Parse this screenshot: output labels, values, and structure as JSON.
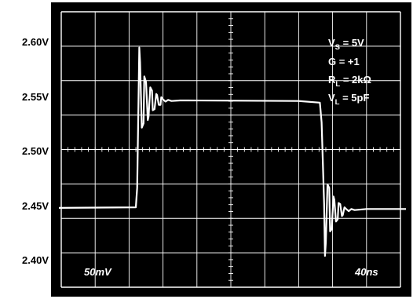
{
  "chart_data": {
    "type": "line",
    "title": "",
    "y_tick_labels": [
      "2.60V",
      "2.55V",
      "2.50V",
      "2.45V",
      "2.40V"
    ],
    "ylim": [
      2.39,
      2.61
    ],
    "xlim": [
      0,
      400
    ],
    "x_divisions": 10,
    "y_divisions": 8,
    "grid": true,
    "background_color": "#000000",
    "trace_color": "#ffffff",
    "grid_color": "#ffffff",
    "conditions": [
      {
        "label": "V",
        "sub": "S",
        "value": " = 5V"
      },
      {
        "label": "G = +1",
        "sub": "",
        "value": ""
      },
      {
        "label": "R",
        "sub": "L",
        "value": " = 2kΩ"
      },
      {
        "label": "V",
        "sub": "L",
        "value": " = 5pF"
      }
    ],
    "vertical_scale_label": "50mV",
    "horizontal_scale_label": "40ns",
    "series": [
      {
        "x": [
          0,
          88,
          89.5,
          91,
          92,
          93,
          95,
          97,
          98,
          100,
          102,
          103,
          105,
          107,
          108,
          110,
          112,
          113,
          115,
          117,
          118,
          120,
          123,
          126,
          130,
          140,
          150,
          280,
          305,
          307,
          310,
          311,
          312,
          314,
          316,
          317,
          319,
          321,
          322,
          324,
          326,
          327,
          329,
          331,
          332,
          334,
          336,
          339,
          342,
          346,
          360,
          400
        ],
        "y": [
          2.4515,
          2.452,
          2.47,
          2.545,
          2.5985,
          2.585,
          2.525,
          2.529,
          2.572,
          2.567,
          2.532,
          2.535,
          2.562,
          2.559,
          2.541,
          2.542,
          2.556,
          2.555,
          2.546,
          2.546,
          2.553,
          2.551,
          2.549,
          2.5505,
          2.5495,
          2.55,
          2.55,
          2.5495,
          2.548,
          2.53,
          2.455,
          2.4075,
          2.42,
          2.473,
          2.47,
          2.43,
          2.432,
          2.462,
          2.459,
          2.439,
          2.441,
          2.456,
          2.455,
          2.444,
          2.445,
          2.452,
          2.4505,
          2.4485,
          2.4505,
          2.4495,
          2.4505,
          2.4505
        ]
      }
    ]
  }
}
